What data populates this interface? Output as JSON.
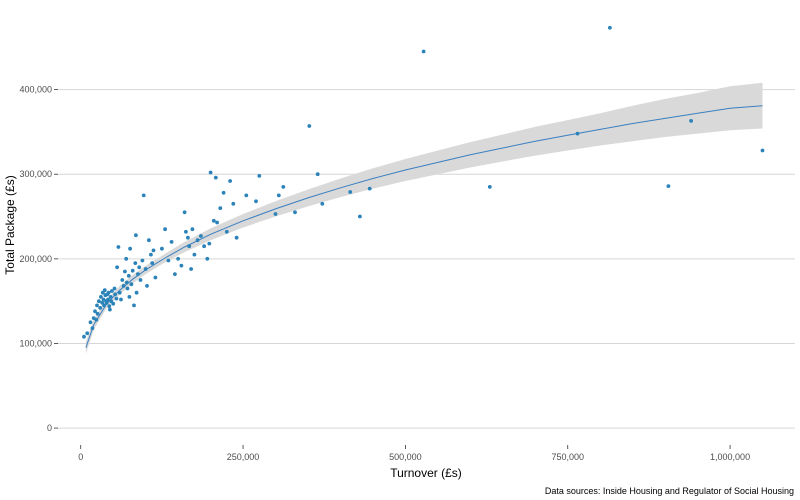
{
  "chart_data": {
    "type": "scatter",
    "title": "",
    "xlabel": "Turnover (£s)",
    "ylabel": "Total Package (£s)",
    "caption": "Data sources: Inside Housing and Regulator of Social Housing",
    "xlim": [
      -35000,
      1100000
    ],
    "ylim": [
      -20000,
      500000
    ],
    "x_ticks": [
      0,
      250000,
      500000,
      750000,
      1000000
    ],
    "x_tick_labels": [
      "0",
      "250,000",
      "500,000",
      "750,000",
      "1,000,000"
    ],
    "y_ticks": [
      0,
      100000,
      200000,
      300000,
      400000
    ],
    "y_tick_labels": [
      "0",
      "100,000",
      "200,000",
      "300,000",
      "400,000"
    ],
    "grid": "horizontal major lines",
    "point_color": "#2b83ba",
    "fit_color": "#3a7fc0",
    "band_color": "#d9d9d9",
    "fit": {
      "x": [
        8000,
        20000,
        40000,
        60000,
        80000,
        100000,
        130000,
        160000,
        200000,
        250000,
        300000,
        350000,
        400000,
        450000,
        500000,
        550000,
        600000,
        650000,
        700000,
        750000,
        800000,
        850000,
        900000,
        950000,
        1000000,
        1050000
      ],
      "y": [
        95000,
        122000,
        147000,
        163000,
        176000,
        187000,
        201000,
        214000,
        229000,
        245000,
        259000,
        272000,
        284000,
        295000,
        305000,
        314000,
        323000,
        331000,
        339000,
        346000,
        353000,
        360000,
        366000,
        372000,
        378000,
        381000
      ],
      "lower": [
        88000,
        116000,
        142000,
        158000,
        171000,
        182000,
        196000,
        208000,
        222000,
        237000,
        250000,
        262000,
        273000,
        283000,
        292000,
        300000,
        308000,
        315000,
        322000,
        328000,
        334000,
        339000,
        344000,
        348000,
        352000,
        354000
      ],
      "upper": [
        102000,
        128000,
        152000,
        168000,
        181000,
        192000,
        206000,
        220000,
        236000,
        253000,
        268000,
        282000,
        295000,
        307000,
        318000,
        328000,
        338000,
        347000,
        356000,
        364000,
        372000,
        381000,
        389000,
        396000,
        404000,
        408000
      ]
    },
    "points": [
      {
        "x": 5000,
        "y": 108000
      },
      {
        "x": 10000,
        "y": 112000
      },
      {
        "x": 15000,
        "y": 125000
      },
      {
        "x": 18000,
        "y": 118000
      },
      {
        "x": 20000,
        "y": 130000
      },
      {
        "x": 22000,
        "y": 138000
      },
      {
        "x": 24000,
        "y": 128000
      },
      {
        "x": 25000,
        "y": 145000
      },
      {
        "x": 26000,
        "y": 135000
      },
      {
        "x": 28000,
        "y": 150000
      },
      {
        "x": 30000,
        "y": 142000
      },
      {
        "x": 31000,
        "y": 155000
      },
      {
        "x": 33000,
        "y": 148000
      },
      {
        "x": 34000,
        "y": 160000
      },
      {
        "x": 35000,
        "y": 152000
      },
      {
        "x": 36000,
        "y": 145000
      },
      {
        "x": 37000,
        "y": 163000
      },
      {
        "x": 38000,
        "y": 157000
      },
      {
        "x": 39000,
        "y": 150000
      },
      {
        "x": 40000,
        "y": 148000
      },
      {
        "x": 41000,
        "y": 158000
      },
      {
        "x": 42000,
        "y": 152000
      },
      {
        "x": 43000,
        "y": 160000
      },
      {
        "x": 44000,
        "y": 144000
      },
      {
        "x": 45000,
        "y": 140000
      },
      {
        "x": 46000,
        "y": 155000
      },
      {
        "x": 47000,
        "y": 150000
      },
      {
        "x": 48000,
        "y": 162000
      },
      {
        "x": 50000,
        "y": 147000
      },
      {
        "x": 52000,
        "y": 165000
      },
      {
        "x": 53000,
        "y": 158000
      },
      {
        "x": 55000,
        "y": 153000
      },
      {
        "x": 56000,
        "y": 190000
      },
      {
        "x": 58000,
        "y": 214000
      },
      {
        "x": 60000,
        "y": 160000
      },
      {
        "x": 62000,
        "y": 152000
      },
      {
        "x": 64000,
        "y": 175000
      },
      {
        "x": 66000,
        "y": 168000
      },
      {
        "x": 68000,
        "y": 185000
      },
      {
        "x": 70000,
        "y": 200000
      },
      {
        "x": 71000,
        "y": 172000
      },
      {
        "x": 72000,
        "y": 165000
      },
      {
        "x": 74000,
        "y": 180000
      },
      {
        "x": 75000,
        "y": 155000
      },
      {
        "x": 76000,
        "y": 212000
      },
      {
        "x": 78000,
        "y": 170000
      },
      {
        "x": 80000,
        "y": 186000
      },
      {
        "x": 82000,
        "y": 145000
      },
      {
        "x": 84000,
        "y": 195000
      },
      {
        "x": 85000,
        "y": 228000
      },
      {
        "x": 86000,
        "y": 160000
      },
      {
        "x": 88000,
        "y": 182000
      },
      {
        "x": 90000,
        "y": 190000
      },
      {
        "x": 92000,
        "y": 175000
      },
      {
        "x": 95000,
        "y": 198000
      },
      {
        "x": 97000,
        "y": 275000
      },
      {
        "x": 100000,
        "y": 188000
      },
      {
        "x": 102000,
        "y": 168000
      },
      {
        "x": 105000,
        "y": 222000
      },
      {
        "x": 108000,
        "y": 205000
      },
      {
        "x": 110000,
        "y": 195000
      },
      {
        "x": 112000,
        "y": 210000
      },
      {
        "x": 115000,
        "y": 178000
      },
      {
        "x": 125000,
        "y": 212000
      },
      {
        "x": 130000,
        "y": 235000
      },
      {
        "x": 135000,
        "y": 198000
      },
      {
        "x": 140000,
        "y": 220000
      },
      {
        "x": 145000,
        "y": 182000
      },
      {
        "x": 150000,
        "y": 200000
      },
      {
        "x": 155000,
        "y": 192000
      },
      {
        "x": 160000,
        "y": 255000
      },
      {
        "x": 162000,
        "y": 232000
      },
      {
        "x": 165000,
        "y": 225000
      },
      {
        "x": 167000,
        "y": 215000
      },
      {
        "x": 170000,
        "y": 188000
      },
      {
        "x": 172000,
        "y": 235000
      },
      {
        "x": 175000,
        "y": 205000
      },
      {
        "x": 180000,
        "y": 222000
      },
      {
        "x": 185000,
        "y": 227000
      },
      {
        "x": 190000,
        "y": 215000
      },
      {
        "x": 195000,
        "y": 200000
      },
      {
        "x": 198000,
        "y": 218000
      },
      {
        "x": 200000,
        "y": 302000
      },
      {
        "x": 205000,
        "y": 245000
      },
      {
        "x": 208000,
        "y": 296000
      },
      {
        "x": 210000,
        "y": 243000
      },
      {
        "x": 215000,
        "y": 260000
      },
      {
        "x": 220000,
        "y": 278000
      },
      {
        "x": 225000,
        "y": 232000
      },
      {
        "x": 230000,
        "y": 292000
      },
      {
        "x": 235000,
        "y": 265000
      },
      {
        "x": 240000,
        "y": 225000
      },
      {
        "x": 255000,
        "y": 275000
      },
      {
        "x": 270000,
        "y": 268000
      },
      {
        "x": 275000,
        "y": 298000
      },
      {
        "x": 300000,
        "y": 253000
      },
      {
        "x": 305000,
        "y": 275000
      },
      {
        "x": 312000,
        "y": 285000
      },
      {
        "x": 330000,
        "y": 255000
      },
      {
        "x": 352000,
        "y": 357000
      },
      {
        "x": 365000,
        "y": 300000
      },
      {
        "x": 372000,
        "y": 265000
      },
      {
        "x": 415000,
        "y": 279000
      },
      {
        "x": 430000,
        "y": 250000
      },
      {
        "x": 445000,
        "y": 283000
      },
      {
        "x": 528000,
        "y": 445000
      },
      {
        "x": 630000,
        "y": 285000
      },
      {
        "x": 765000,
        "y": 348000
      },
      {
        "x": 815000,
        "y": 473000
      },
      {
        "x": 905000,
        "y": 286000
      },
      {
        "x": 940000,
        "y": 363000
      },
      {
        "x": 1050000,
        "y": 328000
      }
    ]
  }
}
